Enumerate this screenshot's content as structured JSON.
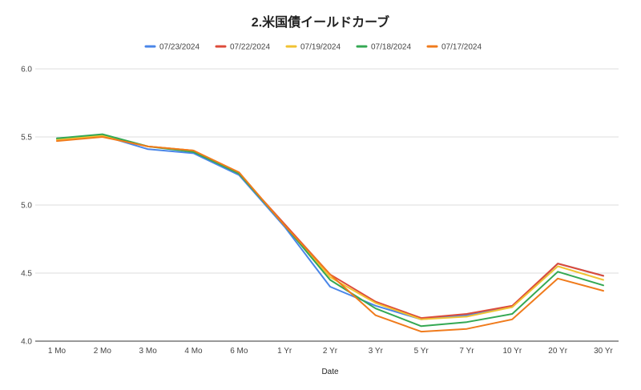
{
  "chart_data": {
    "type": "line",
    "title": "2.米国債イールドカーブ",
    "xlabel": "Date",
    "ylabel": "",
    "ylim": [
      4.0,
      6.0
    ],
    "yticks": [
      "4.0",
      "4.5",
      "5.0",
      "5.5",
      "6.0"
    ],
    "grid": true,
    "legend_position": "top",
    "categories": [
      "1 Mo",
      "2 Mo",
      "3 Mo",
      "4 Mo",
      "6 Mo",
      "1 Yr",
      "2 Yr",
      "3 Yr",
      "5 Yr",
      "7 Yr",
      "10 Yr",
      "20 Yr",
      "30 Yr"
    ],
    "series": [
      {
        "name": "07/23/2024",
        "color": "#4a86e8",
        "values": [
          5.49,
          5.51,
          5.41,
          5.38,
          5.22,
          4.84,
          4.4,
          4.26,
          4.16,
          4.19,
          4.25,
          4.57,
          4.48
        ]
      },
      {
        "name": "07/22/2024",
        "color": "#dd4b39",
        "values": [
          5.48,
          5.51,
          5.43,
          5.4,
          5.23,
          4.86,
          4.49,
          4.29,
          4.17,
          4.2,
          4.26,
          4.57,
          4.48
        ]
      },
      {
        "name": "07/19/2024",
        "color": "#f1c232",
        "values": [
          5.48,
          5.51,
          5.43,
          5.4,
          5.23,
          4.85,
          4.47,
          4.28,
          4.16,
          4.18,
          4.25,
          4.55,
          4.45
        ]
      },
      {
        "name": "07/18/2024",
        "color": "#34a853",
        "values": [
          5.49,
          5.52,
          5.43,
          5.39,
          5.23,
          4.85,
          4.45,
          4.24,
          4.11,
          4.14,
          4.2,
          4.51,
          4.41
        ]
      },
      {
        "name": "07/17/2024",
        "color": "#f07b1c",
        "values": [
          5.47,
          5.5,
          5.43,
          5.4,
          5.24,
          4.85,
          4.49,
          4.19,
          4.07,
          4.09,
          4.16,
          4.46,
          4.37
        ]
      }
    ]
  }
}
